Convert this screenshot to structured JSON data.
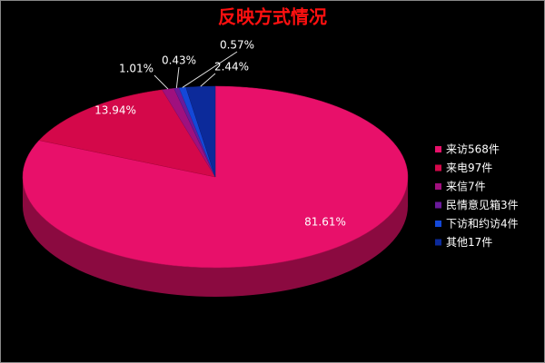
{
  "chart_data": {
    "type": "pie",
    "title": "反映方式情况",
    "categories": [
      "来访568件",
      "来电97件",
      "来信7件",
      "民情意见箱3件",
      "下访和约访4件",
      "其他17件"
    ],
    "values": [
      81.61,
      13.94,
      1.01,
      0.43,
      0.57,
      2.44
    ],
    "value_labels": [
      "81.61%",
      "13.94%",
      "1.01%",
      "0.43%",
      "0.57%",
      "2.44%"
    ],
    "colors": [
      "#e8106a",
      "#d4084a",
      "#a0107e",
      "#6a1a9a",
      "#1448d8",
      "#0c2a9a"
    ],
    "legend": "right"
  }
}
